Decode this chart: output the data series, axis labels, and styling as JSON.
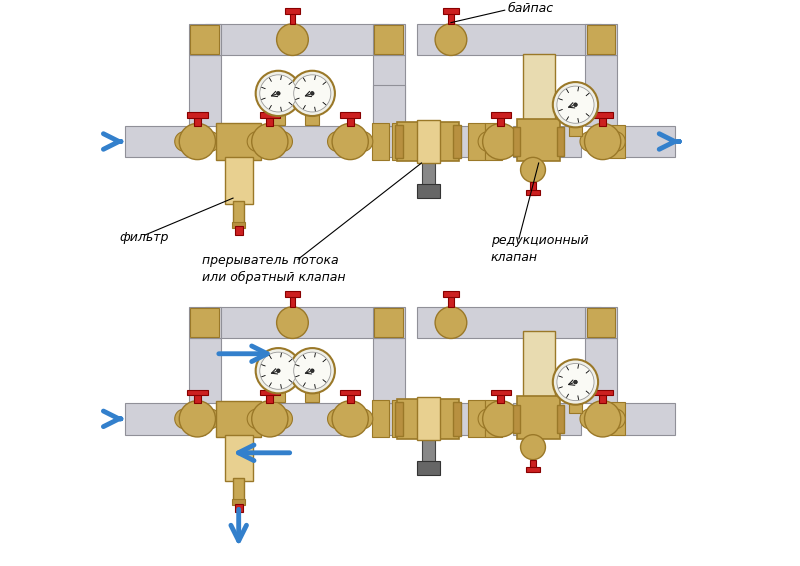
{
  "bg_color": "#ffffff",
  "pipe_color": "#d0d0d8",
  "pipe_edge_color": "#909098",
  "brass_color": "#c8a855",
  "brass_dark": "#9a7828",
  "brass_light": "#e8d090",
  "brass_mid": "#b89040",
  "red_color": "#cc2020",
  "red_dark": "#880000",
  "arrow_color": "#3380cc",
  "label_color": "#000000",
  "bypass_label": "байпас",
  "filter_label": "фильтр",
  "flow_breaker_label": "прерыватель потока\nили обратный клапан",
  "reducer_label": "редукционный\nклапан",
  "figsize": [
    8.0,
    5.66
  ],
  "dpi": 100
}
